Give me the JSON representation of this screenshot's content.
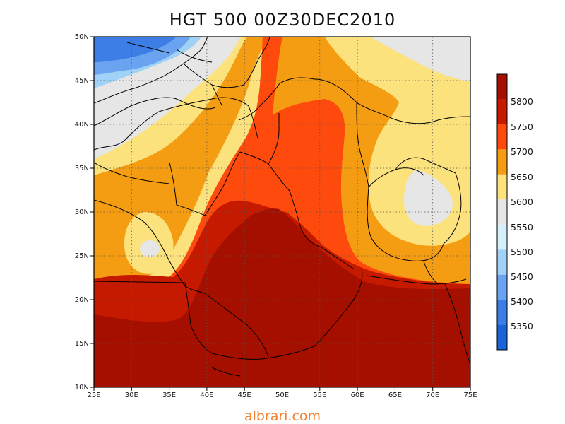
{
  "title": "HGT 500 00Z30DEC2010",
  "footer": "albrari.com",
  "chart_data": {
    "type": "heatmap",
    "title": "HGT 500 00Z30DEC2010",
    "variable": "500 hPa geopotential height",
    "lon_range": [
      25,
      75
    ],
    "lat_range": [
      10,
      50
    ],
    "x_ticks": [
      "25E",
      "30E",
      "35E",
      "40E",
      "45E",
      "50E",
      "55E",
      "60E",
      "65E",
      "70E",
      "75E"
    ],
    "y_ticks": [
      "10N",
      "15N",
      "20N",
      "25N",
      "30N",
      "35N",
      "40N",
      "45N",
      "50N"
    ],
    "grid": true,
    "grid_style": "dotted",
    "legend_position": "right",
    "colorbar_labels": [
      "5350",
      "5400",
      "5450",
      "5500",
      "5550",
      "5600",
      "5650",
      "5700",
      "5750",
      "5800"
    ],
    "colorbar_colors": [
      "#1a64d8",
      "#3c7ee6",
      "#6aa4f0",
      "#9fd2f6",
      "#d4f0fa",
      "#e6e6e6",
      "#fbe27c",
      "#f59d12",
      "#fe4a0c",
      "#c51a00",
      "#a50f00"
    ]
  }
}
